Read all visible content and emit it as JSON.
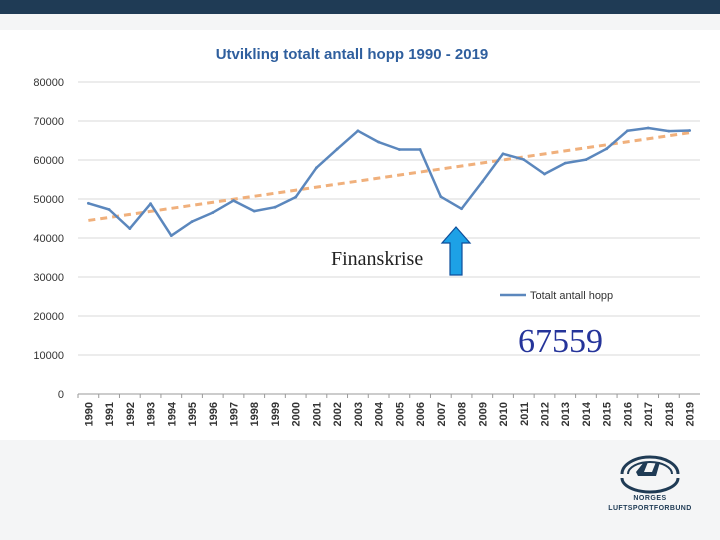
{
  "chart_data": {
    "type": "line",
    "title": "Utvikling totalt antall hopp 1990 - 2019",
    "xlabel": "",
    "ylabel": "",
    "ylim": [
      0,
      80000
    ],
    "yticks": [
      0,
      10000,
      20000,
      30000,
      40000,
      50000,
      60000,
      70000,
      80000
    ],
    "ytick_labels": [
      "0",
      "10000",
      "20000",
      "30000",
      "40000",
      "50000",
      "60000",
      "70000",
      "80000"
    ],
    "grid": true,
    "legend_position": "right",
    "categories": [
      "1990",
      "1991",
      "1992",
      "1993",
      "1994",
      "1995",
      "1996",
      "1997",
      "1998",
      "1999",
      "2000",
      "2001",
      "2002",
      "2003",
      "2004",
      "2005",
      "2006",
      "2007",
      "2008",
      "2009",
      "2010",
      "2011",
      "2012",
      "2013",
      "2014",
      "2015",
      "2016",
      "2017",
      "2018",
      "2019"
    ],
    "series": [
      {
        "name": "Totalt antall hopp",
        "color": "#5b87bd",
        "values": [
          48900,
          47300,
          42400,
          48800,
          40600,
          44200,
          46500,
          49600,
          46900,
          47900,
          50500,
          58000,
          62800,
          67500,
          64600,
          62700,
          62700,
          50600,
          47500,
          54400,
          61600,
          60100,
          56400,
          59200,
          60100,
          62900,
          67500,
          68200,
          67400,
          67559
        ]
      }
    ],
    "trendline": {
      "color": "#f0b07c",
      "start": 44500,
      "end": 67000
    },
    "annotations": {
      "arrow_year": "2008",
      "label": "Finanskrise",
      "big_number": "67559",
      "arrow_color": "#1da1e6"
    }
  },
  "logo": {
    "line1": "NORGES",
    "line2": "LUFTSPORTFORBUND"
  }
}
